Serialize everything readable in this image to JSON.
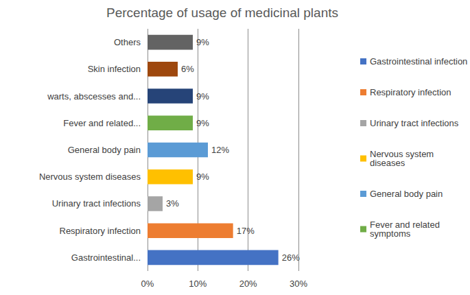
{
  "chart_data": {
    "type": "bar",
    "title": "Percentage of usage of medicinal plants",
    "orientation": "horizontal",
    "categories": [
      "Gastrointestinal...",
      "Respiratory infection",
      "Urinary tract infections",
      "Nervous system diseases",
      "General body pain",
      "Fever and related...",
      "warts, abscesses and...",
      "Skin infection",
      "Others"
    ],
    "series": [
      {
        "name": "Gastrointestinal infection",
        "color": "#4472c4",
        "values": [
          26,
          null,
          null,
          null,
          null,
          null,
          null,
          null,
          null
        ],
        "value_labels": [
          "26%",
          null,
          null,
          null,
          null,
          null,
          null,
          null,
          null
        ]
      },
      {
        "name": "Respiratory infection",
        "color": "#ed7d31",
        "values": [
          null,
          17,
          null,
          null,
          null,
          null,
          null,
          null,
          null
        ],
        "value_labels": [
          null,
          "17%",
          null,
          null,
          null,
          null,
          null,
          null,
          null
        ]
      },
      {
        "name": "Urinary tract infections",
        "color": "#a5a5a5",
        "values": [
          null,
          null,
          3,
          null,
          null,
          null,
          null,
          null,
          null
        ],
        "value_labels": [
          null,
          null,
          "3%",
          null,
          null,
          null,
          null,
          null,
          null
        ]
      },
      {
        "name": "Nervous system diseases",
        "color": "#ffc000",
        "values": [
          null,
          null,
          null,
          9,
          null,
          null,
          null,
          null,
          null
        ],
        "value_labels": [
          null,
          null,
          null,
          "9%",
          null,
          null,
          null,
          null,
          null
        ]
      },
      {
        "name": "General body pain",
        "color": "#5b9bd5",
        "values": [
          null,
          null,
          null,
          null,
          12,
          null,
          null,
          null,
          null
        ],
        "value_labels": [
          null,
          null,
          null,
          null,
          "12%",
          null,
          null,
          null,
          null
        ]
      },
      {
        "name": "Fever and related symptoms",
        "color": "#70ad47",
        "values": [
          null,
          null,
          null,
          null,
          null,
          9,
          null,
          null,
          null
        ],
        "value_labels": [
          null,
          null,
          null,
          null,
          null,
          "9%",
          null,
          null,
          null
        ]
      },
      {
        "color": "#264478",
        "values": [
          null,
          null,
          null,
          null,
          null,
          null,
          9,
          null,
          null
        ],
        "value_labels": [
          null,
          null,
          null,
          null,
          null,
          null,
          "9%",
          null,
          null
        ]
      },
      {
        "color": "#9e480e",
        "values": [
          null,
          null,
          null,
          null,
          null,
          null,
          null,
          6,
          null
        ],
        "value_labels": [
          null,
          null,
          null,
          null,
          null,
          null,
          null,
          "6%",
          null
        ]
      },
      {
        "color": "#636363",
        "values": [
          null,
          null,
          null,
          null,
          null,
          null,
          null,
          null,
          9
        ],
        "value_labels": [
          null,
          null,
          null,
          null,
          null,
          null,
          null,
          null,
          "9%"
        ]
      }
    ],
    "xlim": [
      0,
      30
    ],
    "xticks": [
      {
        "value": 0,
        "label": "0%"
      },
      {
        "value": 10,
        "label": "10%"
      },
      {
        "value": 20,
        "label": "20%"
      },
      {
        "value": 30,
        "label": "30%"
      }
    ],
    "grid": true,
    "legend": "right",
    "data_labels": true,
    "stacked": false
  }
}
